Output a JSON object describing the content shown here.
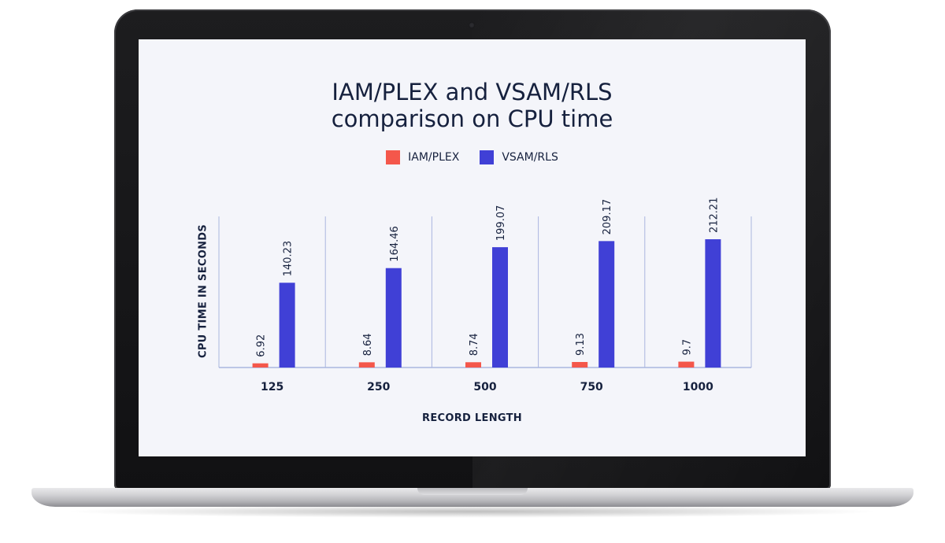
{
  "chart_data": {
    "type": "bar",
    "title_lines": [
      "IAM/PLEX and VSAM/RLS",
      "comparison on CPU time"
    ],
    "xlabel": "RECORD LENGTH",
    "ylabel": "CPU TIME IN SECONDS",
    "categories": [
      "125",
      "250",
      "500",
      "750",
      "1000"
    ],
    "series": [
      {
        "name": "IAM/PLEX",
        "color": "#f4574b",
        "values": [
          6.92,
          8.64,
          8.74,
          9.13,
          9.7
        ],
        "labels": [
          "6.92",
          "8.64",
          "8.74",
          "9.13",
          "9.7"
        ]
      },
      {
        "name": "VSAM/RLS",
        "color": "#4040d6",
        "values": [
          140.23,
          164.46,
          199.07,
          209.17,
          212.21
        ],
        "labels": [
          "140.23",
          "164.46",
          "199.07",
          "209.17",
          "212.21"
        ]
      }
    ],
    "ylim": [
      0,
      250
    ],
    "grid": "vertical",
    "legend": "top-center"
  },
  "colors": {
    "axis": "#aab6df",
    "text": "#16213e"
  }
}
